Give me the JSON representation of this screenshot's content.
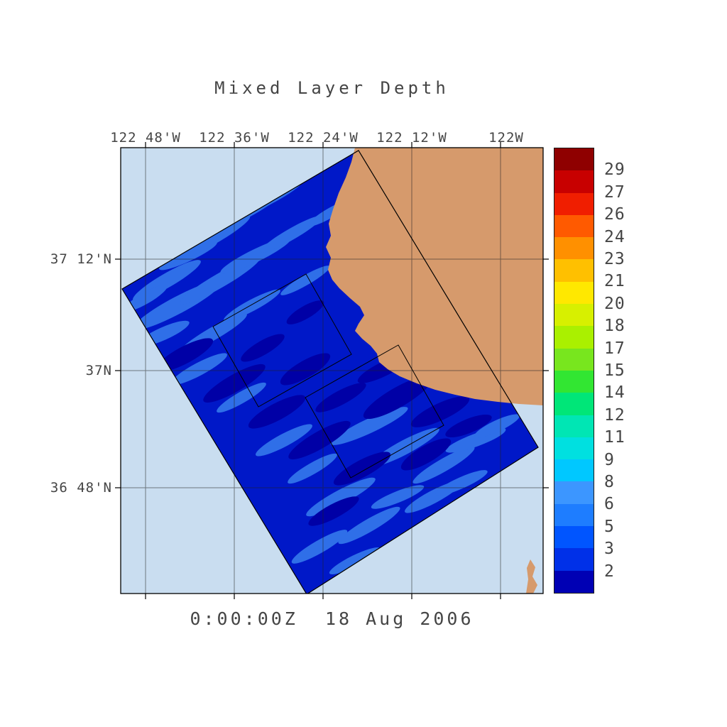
{
  "title": "Mixed Layer Depth",
  "timestamp": "0:00:00Z  18 Aug 2006",
  "map": {
    "x_axis_labels": [
      "122 48'W",
      "122 36'W",
      "122 24'W",
      "122 12'W",
      "122W"
    ],
    "y_axis_labels": [
      "37 12'N",
      "37N",
      "36 48'N"
    ]
  },
  "colorbar": {
    "labels": [
      "29",
      "27",
      "26",
      "24",
      "23",
      "21",
      "20",
      "18",
      "17",
      "15",
      "14",
      "12",
      "11",
      "9",
      "8",
      "6",
      "5",
      "3",
      "2"
    ],
    "colors_top_to_bottom": [
      "#8F0000",
      "#C80000",
      "#F01E00",
      "#FF5A00",
      "#FF9000",
      "#FFC000",
      "#FFE800",
      "#D7F000",
      "#AAF000",
      "#78E61E",
      "#32E632",
      "#00E678",
      "#00E6B4",
      "#00E0E0",
      "#00C8FF",
      "#3C96FF",
      "#1E7DFF",
      "#0055FF",
      "#0030E8",
      "#0000B4"
    ]
  },
  "colors": {
    "ocean": "#C9DDF0",
    "land": "#D69A6C",
    "mld_base": "#0018C8",
    "mld_light": "#2F6FE8",
    "mld_dark": "#0000A6",
    "text": "#454545"
  },
  "chart_data": {
    "type": "heatmap",
    "title": "Mixed Layer Depth",
    "timestamp_label": "0:00:00Z  18 Aug 2006",
    "x_tick_labels": [
      "122 48'W",
      "122 36'W",
      "122 24'W",
      "122 12'W",
      "122W"
    ],
    "y_tick_labels": [
      "37 12'N",
      "37N",
      "36 48'N"
    ],
    "colorbar_tick_values": [
      29,
      27,
      26,
      24,
      23,
      21,
      20,
      18,
      17,
      15,
      14,
      12,
      11,
      9,
      8,
      6,
      5,
      3,
      2
    ],
    "value_range": [
      2,
      29
    ],
    "depicted_values_dominant": [
      2,
      3,
      5
    ],
    "legend_position": "right",
    "grid": true,
    "features": [
      "rotated filled model domain over ocean",
      "two nested rotated subdomain outlines",
      "land mask upper right and small patch lower right",
      "latitude-longitude gridlines"
    ]
  }
}
